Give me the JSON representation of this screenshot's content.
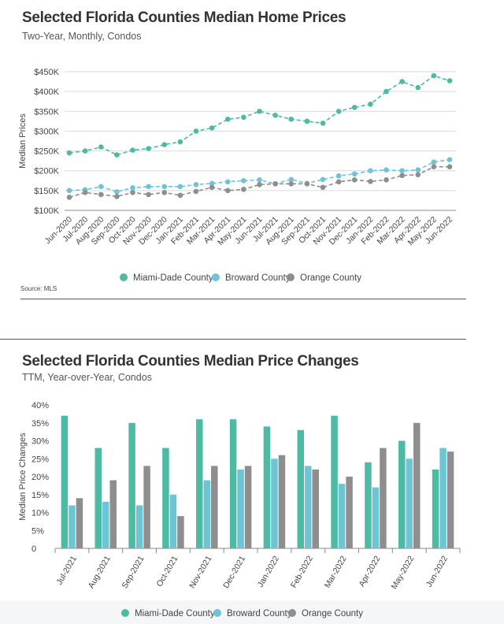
{
  "charts": {
    "top": {
      "title": "Selected Florida Counties Median Home Prices",
      "subtitle": "Two-Year, Monthly, Condos",
      "source": "Source: MLS"
    },
    "bottom": {
      "title": "Selected Florida Counties Median Price Changes",
      "subtitle": "TTM, Year-over-Year, Condos"
    }
  },
  "chart_data": [
    {
      "type": "line",
      "title": "Selected Florida Counties Median Home Prices",
      "subtitle": "Two-Year, Monthly, Condos",
      "xlabel": "",
      "ylabel": "Median Prices",
      "ylim": [
        100000,
        450000
      ],
      "yticks": [
        100000,
        150000,
        200000,
        250000,
        300000,
        350000,
        400000,
        450000
      ],
      "ytick_labels": [
        "$100K",
        "$150K",
        "$200K",
        "$250K",
        "$300K",
        "$350K",
        "$400K",
        "$450K"
      ],
      "grid": true,
      "legend": "bottom-center",
      "categories": [
        "Jun-2020",
        "Jul-2020",
        "Aug-2020",
        "Sep-2020",
        "Oct-2020",
        "Nov-2020",
        "Dec-2020",
        "Jan-2021",
        "Feb-2021",
        "Mar-2021",
        "Apr-2021",
        "May-2021",
        "Jun-2021",
        "Jul-2021",
        "Aug-2021",
        "Sep-2021",
        "Oct-2021",
        "Nov-2021",
        "Dec-2021",
        "Jan-2022",
        "Feb-2022",
        "Mar-2022",
        "Apr-2022",
        "May-2022",
        "Jun-2022"
      ],
      "series": [
        {
          "name": "Miami-Dade County",
          "color": "#4dbba4",
          "values": [
            245000,
            250000,
            260000,
            240000,
            252000,
            256000,
            266000,
            273000,
            300000,
            308000,
            330000,
            335000,
            350000,
            340000,
            330000,
            325000,
            320000,
            350000,
            360000,
            368000,
            400000,
            425000,
            410000,
            440000,
            427000
          ]
        },
        {
          "name": "Broward County",
          "color": "#6cc4d4",
          "values": [
            150000,
            152000,
            160000,
            147000,
            157000,
            160000,
            160000,
            160000,
            165000,
            168000,
            172000,
            175000,
            177000,
            167000,
            178000,
            168000,
            178000,
            187000,
            192000,
            200000,
            202000,
            200000,
            202000,
            222000,
            228000
          ]
        },
        {
          "name": "Orange County",
          "color": "#8e8e8e",
          "values": [
            133000,
            145000,
            140000,
            135000,
            145000,
            140000,
            145000,
            138000,
            148000,
            158000,
            150000,
            153000,
            165000,
            167000,
            167000,
            167000,
            158000,
            172000,
            177000,
            173000,
            177000,
            188000,
            190000,
            210000,
            210000
          ]
        }
      ]
    },
    {
      "type": "bar",
      "title": "Selected Florida Counties Median Price Changes",
      "subtitle": "TTM, Year-over-Year, Condos",
      "xlabel": "",
      "ylabel": "Median Price Changes",
      "ylim": [
        0,
        40
      ],
      "yticks": [
        0,
        5,
        10,
        15,
        20,
        25,
        30,
        35,
        40
      ],
      "ytick_labels": [
        "0",
        "5%",
        "10%",
        "15%",
        "20%",
        "25%",
        "30%",
        "35%",
        "40%"
      ],
      "grid": false,
      "legend": "bottom-center",
      "categories": [
        "Jul-2021",
        "Aug-2021",
        "Sep-2021",
        "Oct-2021",
        "Nov-2021",
        "Dec-2021",
        "Jan-2022",
        "Feb-2022",
        "Mar-2022",
        "Apr-2022",
        "May-2022",
        "Jun-2022"
      ],
      "series": [
        {
          "name": "Miami-Dade County",
          "color": "#4dbba4",
          "values": [
            37,
            28,
            35,
            28,
            36,
            36,
            34,
            33,
            37,
            24,
            30,
            22
          ]
        },
        {
          "name": "Broward County",
          "color": "#6cc4d4",
          "values": [
            12,
            13,
            12,
            15,
            19,
            22,
            25,
            23,
            18,
            17,
            25,
            28
          ]
        },
        {
          "name": "Orange County",
          "color": "#8e8e8e",
          "values": [
            14,
            19,
            23,
            9,
            23,
            23,
            26,
            22,
            20,
            28,
            35,
            27
          ]
        }
      ]
    }
  ]
}
